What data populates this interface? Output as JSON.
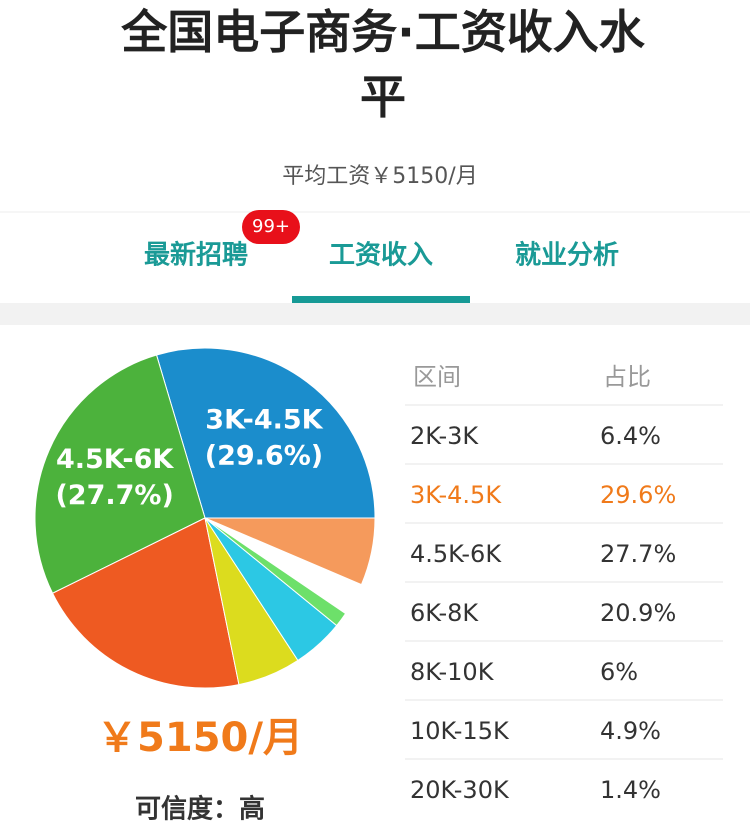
{
  "header": {
    "title": "全国电子商务·工资收入水平",
    "subtitle": "平均工资￥5150/月"
  },
  "tabs": {
    "items": [
      "最新招聘",
      "工资收入",
      "就业分析"
    ],
    "badge": "99+"
  },
  "chart_data": {
    "type": "pie",
    "categories": [
      "2K-3K",
      "3K-4.5K",
      "4.5K-6K",
      "6K-8K",
      "8K-10K",
      "10K-15K",
      "20K-30K"
    ],
    "values": [
      6.4,
      29.6,
      27.7,
      20.9,
      6,
      4.9,
      1.4
    ],
    "value_labels": [
      "6.4%",
      "29.6%",
      "27.7%",
      "20.9%",
      "6%",
      "4.9%",
      "1.4%"
    ],
    "slice_labels": [
      null,
      "(29.6%)",
      "(27.7%)",
      null,
      null,
      null,
      null
    ],
    "colors": [
      "#f59a5c",
      "#1b8dcc",
      "#4cb23c",
      "#ee5a22",
      "#dcdc1e",
      "#2cc8e4",
      "#6de06a"
    ]
  },
  "table": {
    "headers": [
      "区间",
      "占比"
    ],
    "highlight_row": 1
  },
  "summary": {
    "salary": "￥5150/月",
    "credibility": "可信度：高"
  }
}
